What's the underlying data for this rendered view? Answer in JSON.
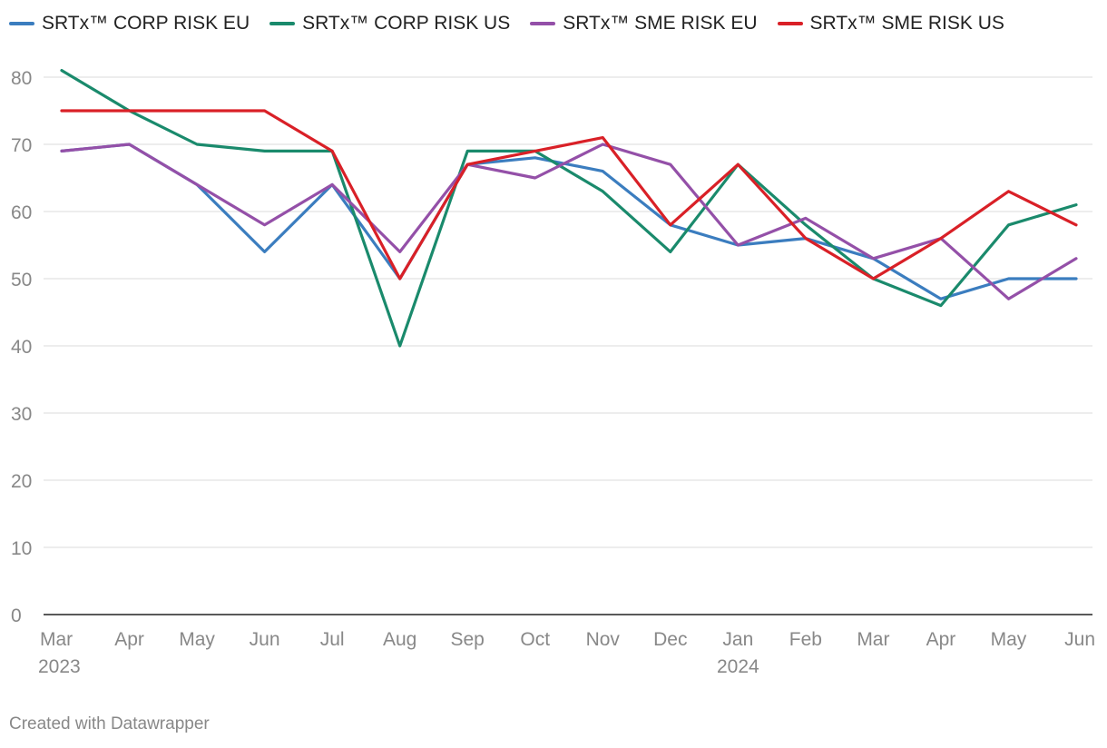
{
  "chart_data": {
    "type": "line",
    "categories": [
      "Mar",
      "Apr",
      "May",
      "Jun",
      "Jul",
      "Aug",
      "Sep",
      "Oct",
      "Nov",
      "Dec",
      "Jan",
      "Feb",
      "Mar",
      "Apr",
      "May",
      "Jun"
    ],
    "year_labels": [
      {
        "index": 0,
        "text": "2023"
      },
      {
        "index": 10,
        "text": "2024"
      }
    ],
    "ylim": [
      0,
      85
    ],
    "yticks": [
      0,
      10,
      20,
      30,
      40,
      50,
      60,
      70,
      80
    ],
    "grid": true,
    "legend_position": "top-left",
    "series": [
      {
        "name": "SRTx™ CORP RISK EU",
        "color": "#3b7dbf",
        "values": [
          69,
          70,
          64,
          54,
          64,
          50,
          67,
          68,
          66,
          58,
          55,
          56,
          53,
          47,
          50,
          50
        ]
      },
      {
        "name": "SRTx™ CORP RISK US",
        "color": "#1a8a6c",
        "values": [
          81,
          75,
          70,
          69,
          69,
          40,
          69,
          69,
          63,
          54,
          67,
          58,
          50,
          46,
          58,
          61
        ]
      },
      {
        "name": "SRTx™ SME RISK EU",
        "color": "#9450a8",
        "values": [
          69,
          70,
          64,
          58,
          64,
          54,
          67,
          65,
          70,
          67,
          55,
          59,
          53,
          56,
          47,
          53
        ]
      },
      {
        "name": "SRTx™ SME RISK US",
        "color": "#d92027",
        "values": [
          75,
          75,
          75,
          75,
          69,
          50,
          67,
          69,
          71,
          58,
          67,
          56,
          50,
          56,
          63,
          58
        ]
      }
    ]
  },
  "credit": "Created with Datawrapper"
}
